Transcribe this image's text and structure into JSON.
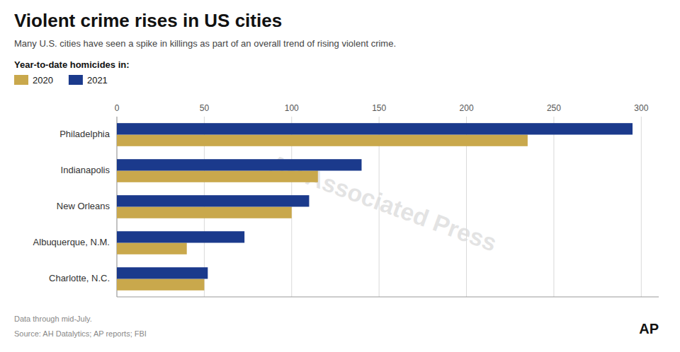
{
  "chart_data": {
    "type": "bar",
    "orientation": "horizontal",
    "title": "Violent crime rises in US cities",
    "subtitle": "Many U.S. cities have seen a spike in killings as part of an overall trend of rising violent crime.",
    "legend_title": "Year-to-date homicides in:",
    "legend": "top-left",
    "categories": [
      "Philadelphia",
      "Indianapolis",
      "New Orleans",
      "Albuquerque, N.M.",
      "Charlotte, N.C."
    ],
    "series": [
      {
        "name": "2020",
        "color": "#C9A84C",
        "values": [
          235,
          115,
          100,
          40,
          50
        ]
      },
      {
        "name": "2021",
        "color": "#1B3A8C",
        "values": [
          295,
          140,
          110,
          73,
          52
        ]
      }
    ],
    "xlim": [
      0,
      310
    ],
    "xticks": [
      0,
      50,
      100,
      150,
      200,
      250,
      300
    ],
    "grid": true,
    "annotations": [
      "Data through mid-July.",
      "Source: AH Datalytics; AP reports; FBI",
      "AP",
      "AP Associated Press"
    ]
  }
}
